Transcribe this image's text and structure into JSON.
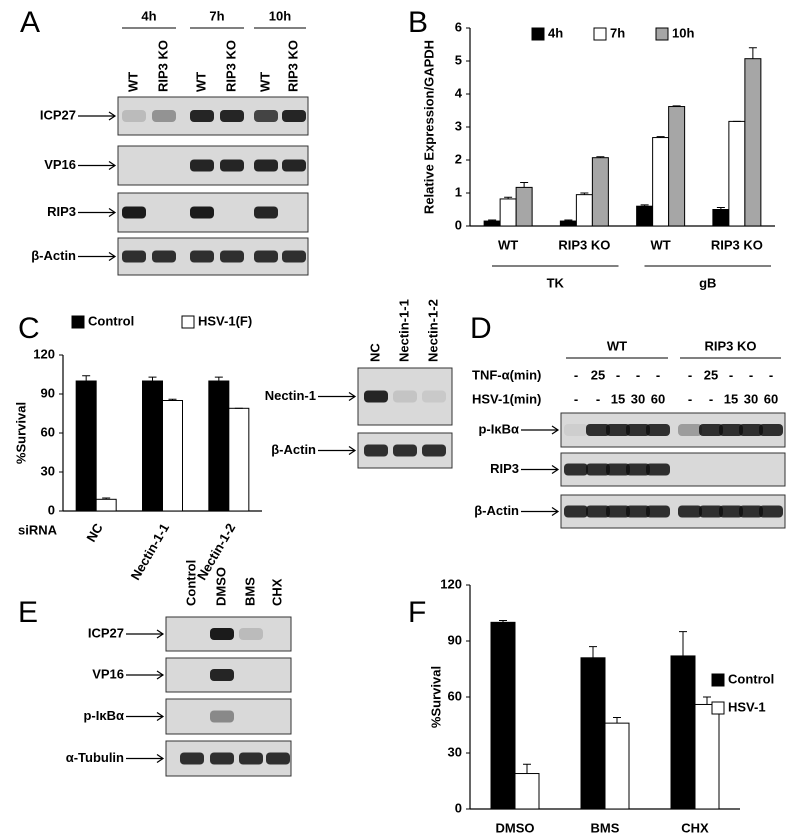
{
  "panel_labels": [
    "A",
    "B",
    "C",
    "D",
    "E",
    "F"
  ],
  "chart_data": [
    {
      "type": "bar",
      "ylabel": "Relative Expression/GAPDH",
      "categories": [
        "WT",
        "RIP3 KO",
        "WT",
        "RIP3 KO"
      ],
      "group_labels": [
        "TK",
        "gB"
      ],
      "series": [
        {
          "name": "4h",
          "color": "#000000",
          "values": [
            0.15,
            0.15,
            0.6,
            0.5
          ],
          "errors": [
            0.03,
            0.03,
            0.04,
            0.06
          ]
        },
        {
          "name": "7h",
          "color": "#ffffff",
          "values": [
            0.82,
            0.95,
            2.68,
            3.17
          ],
          "errors": [
            0.05,
            0.05,
            0.03,
            0
          ]
        },
        {
          "name": "10h",
          "color": "#a6a6a6",
          "values": [
            1.17,
            2.07,
            3.62,
            5.07
          ],
          "errors": [
            0.15,
            0.03,
            0.02,
            0.33
          ]
        }
      ],
      "ylim": [
        0,
        6
      ],
      "yticks": [
        0,
        1,
        2,
        3,
        4,
        5,
        6
      ],
      "legend": "top",
      "grid": false
    },
    {
      "type": "bar",
      "ylabel": "%Survival",
      "xlabel": "siRNA",
      "categories": [
        "NC",
        "Nectin-1-1",
        "Nectin-1-2"
      ],
      "series": [
        {
          "name": "Control",
          "color": "#000000",
          "values": [
            100,
            100,
            100
          ],
          "errors": [
            4,
            3,
            3
          ]
        },
        {
          "name": "HSV-1(F)",
          "color": "#ffffff",
          "values": [
            9,
            85,
            79
          ],
          "errors": [
            1,
            1,
            0
          ]
        }
      ],
      "ylim": [
        0,
        120
      ],
      "yticks": [
        0,
        30,
        60,
        90,
        120
      ],
      "legend": "top",
      "grid": false
    },
    {
      "type": "bar",
      "ylabel": "%Survival",
      "categories": [
        "DMSO",
        "BMS",
        "CHX"
      ],
      "series": [
        {
          "name": "Control",
          "color": "#000000",
          "values": [
            100,
            81,
            82
          ],
          "errors": [
            1,
            6,
            13
          ]
        },
        {
          "name": "HSV-1",
          "color": "#ffffff",
          "values": [
            19,
            46,
            56
          ],
          "errors": [
            5,
            3,
            4
          ]
        }
      ],
      "ylim": [
        0,
        120
      ],
      "yticks": [
        0,
        30,
        60,
        90,
        120
      ],
      "legend": "right",
      "grid": false
    }
  ],
  "blot_A": {
    "time_labels": [
      "4h",
      "7h",
      "10h"
    ],
    "lanes": [
      "WT",
      "RIP3 KO",
      "WT",
      "RIP3 KO",
      "WT",
      "RIP3 KO"
    ],
    "rows": [
      "ICP27",
      "VP16",
      "RIP3",
      "β-Actin"
    ]
  },
  "blot_C": {
    "lanes": [
      "NC",
      "Nectin-1-1",
      "Nectin-1-2"
    ],
    "rows": [
      "Nectin-1",
      "β-Actin"
    ]
  },
  "blot_D": {
    "groups": [
      "WT",
      "RIP3 KO"
    ],
    "treatments": [
      {
        "name": "TNF-α(min)",
        "lanes": [
          "-",
          "25",
          "-",
          "-",
          "-",
          "-",
          "25",
          "-",
          "-",
          "-"
        ]
      },
      {
        "name": "HSV-1(min)",
        "lanes": [
          "-",
          "-",
          "15",
          "30",
          "60",
          "-",
          "-",
          "15",
          "30",
          "60"
        ]
      }
    ],
    "rows": [
      "p-IκBα",
      "RIP3",
      "β-Actin"
    ]
  },
  "blot_E": {
    "lanes": [
      "Control",
      "DMSO",
      "BMS",
      "CHX"
    ],
    "rows": [
      "ICP27",
      "VP16",
      "p-IκBα",
      "α-Tubulin"
    ]
  }
}
